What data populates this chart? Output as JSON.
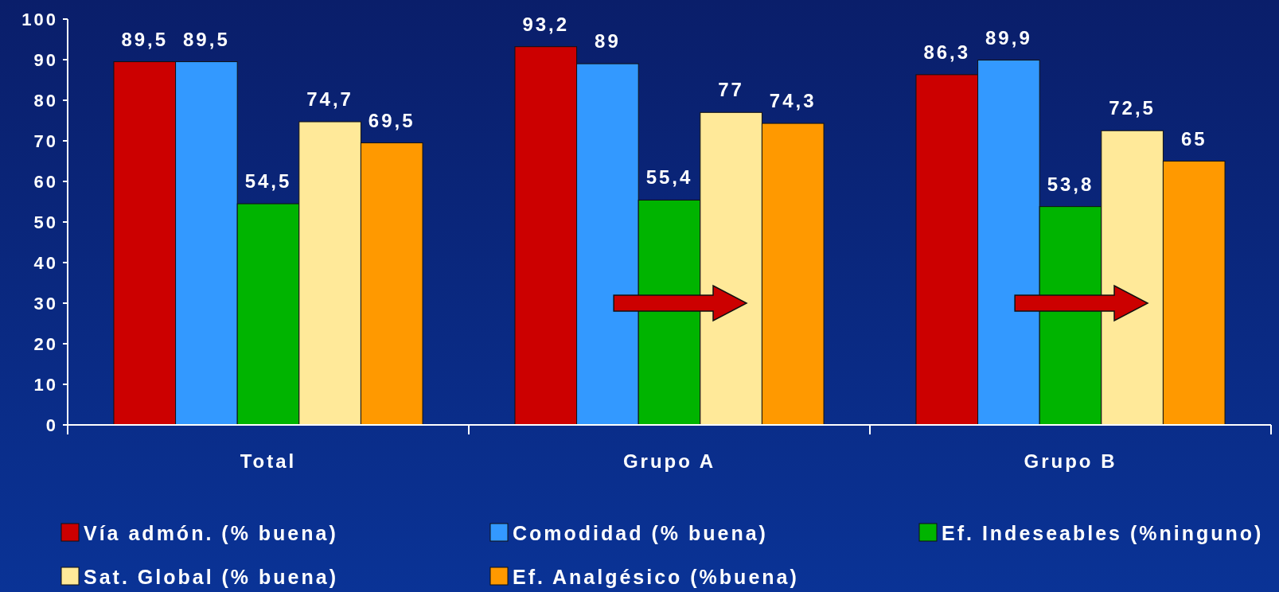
{
  "chart_data": {
    "type": "bar",
    "categories": [
      "Total",
      "Grupo A",
      "Grupo B"
    ],
    "series": [
      {
        "name": "Vía admón. (% buena)",
        "color": "#cc0000",
        "values": [
          89.5,
          93.2,
          86.3
        ],
        "value_labels": [
          "89,5",
          "93,2",
          "86,3"
        ]
      },
      {
        "name": "Comodidad (% buena)",
        "color": "#3399ff",
        "values": [
          89.5,
          89,
          89.9
        ],
        "value_labels": [
          "89,5",
          "89",
          "89,9"
        ]
      },
      {
        "name": "Ef. Indeseables (%ninguno)",
        "color": "#00b400",
        "values": [
          54.5,
          55.4,
          53.8
        ],
        "value_labels": [
          "54,5",
          "55,4",
          "53,8"
        ]
      },
      {
        "name": "Sat. Global (% buena)",
        "color": "#ffe999",
        "values": [
          74.7,
          77,
          72.5
        ],
        "value_labels": [
          "74,7",
          "77",
          "72,5"
        ]
      },
      {
        "name": "Ef. Analgésico (%buena)",
        "color": "#ff9900",
        "values": [
          69.5,
          74.3,
          65
        ],
        "value_labels": [
          "69,5",
          "74,3",
          "65"
        ]
      }
    ],
    "ylim": [
      0,
      100
    ],
    "yticks": [
      0,
      10,
      20,
      30,
      40,
      50,
      60,
      70,
      80,
      90,
      100
    ],
    "grid": false,
    "legend": "bottom"
  }
}
